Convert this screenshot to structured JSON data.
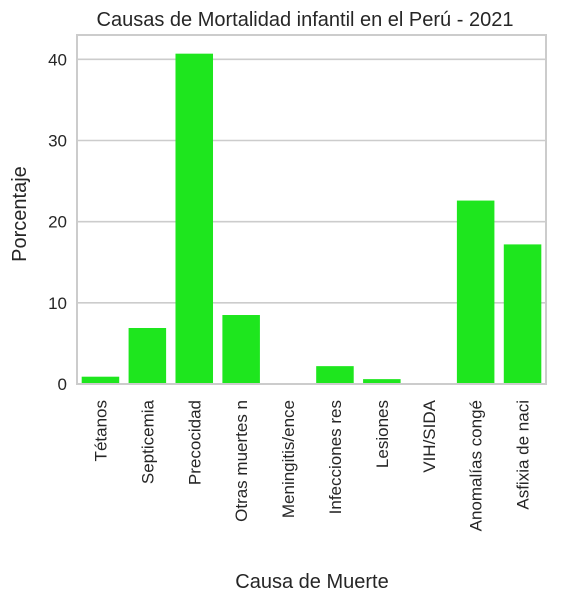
{
  "chart_data": {
    "type": "bar",
    "title": "Causas de Mortalidad infantil en el Perú - 2021",
    "xlabel": "Causa de Muerte",
    "ylabel": "Porcentaje",
    "categories": [
      "Tétanos",
      "Septicemia",
      "Precocidad",
      "Otras muertes n",
      "Meningitis/ence",
      "Infecciones res",
      "Lesiones",
      "VIH/SIDA",
      "Anomalías congé",
      "Asfixia de naci"
    ],
    "values": [
      0.9,
      6.9,
      40.7,
      8.5,
      0.0,
      2.2,
      0.6,
      0.0,
      22.6,
      17.2
    ],
    "ylim": [
      0,
      43
    ],
    "yticks": [
      0,
      10,
      20,
      30,
      40
    ],
    "grid": "horizontal",
    "bar_color": "#1ee61e"
  }
}
